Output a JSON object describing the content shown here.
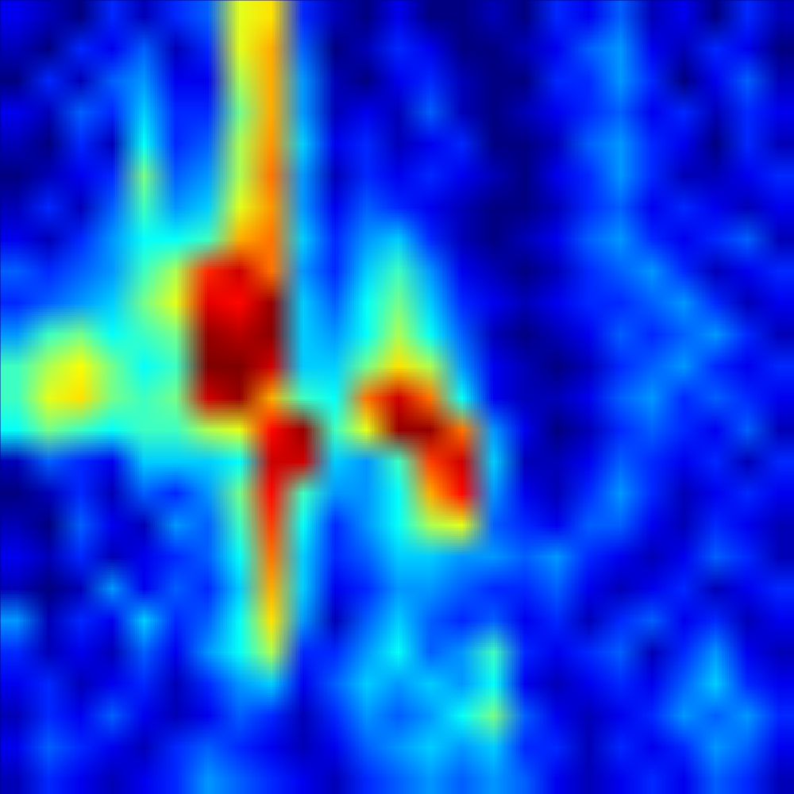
{
  "chart_data": {
    "type": "heatmap",
    "tick_labels": false,
    "cells": [
      [
        0.15,
        0.1,
        0.05,
        0.2,
        0.1,
        0.2,
        0.25,
        0.6,
        0.65,
        0.2,
        0.1,
        0.05,
        0.15,
        0.05,
        0.05,
        0.1,
        0.05,
        0.2,
        0.15,
        0.25,
        0.1,
        0.15,
        0.05,
        0.2,
        0.1
      ],
      [
        0.1,
        0.05,
        0.2,
        0.15,
        0.25,
        0.1,
        0.2,
        0.6,
        0.7,
        0.25,
        0.05,
        0.1,
        0.2,
        0.15,
        0.05,
        0.05,
        0.1,
        0.15,
        0.25,
        0.3,
        0.15,
        0.1,
        0.2,
        0.15,
        0.05
      ],
      [
        0.05,
        0.2,
        0.1,
        0.25,
        0.3,
        0.15,
        0.15,
        0.55,
        0.7,
        0.3,
        0.1,
        0.05,
        0.15,
        0.2,
        0.1,
        0.05,
        0.05,
        0.2,
        0.2,
        0.3,
        0.2,
        0.05,
        0.15,
        0.25,
        0.1
      ],
      [
        0.15,
        0.1,
        0.25,
        0.2,
        0.35,
        0.2,
        0.2,
        0.5,
        0.7,
        0.3,
        0.1,
        0.15,
        0.1,
        0.25,
        0.1,
        0.05,
        0.1,
        0.15,
        0.2,
        0.25,
        0.15,
        0.2,
        0.1,
        0.2,
        0.15
      ],
      [
        0.1,
        0.05,
        0.2,
        0.1,
        0.4,
        0.2,
        0.25,
        0.55,
        0.72,
        0.35,
        0.15,
        0.2,
        0.1,
        0.15,
        0.2,
        0.05,
        0.05,
        0.1,
        0.25,
        0.3,
        0.2,
        0.15,
        0.05,
        0.2,
        0.1
      ],
      [
        0.05,
        0.1,
        0.15,
        0.2,
        0.5,
        0.25,
        0.3,
        0.55,
        0.75,
        0.3,
        0.1,
        0.2,
        0.15,
        0.2,
        0.15,
        0.1,
        0.05,
        0.15,
        0.2,
        0.3,
        0.2,
        0.1,
        0.1,
        0.15,
        0.2
      ],
      [
        0.1,
        0.2,
        0.1,
        0.25,
        0.45,
        0.3,
        0.35,
        0.6,
        0.72,
        0.3,
        0.15,
        0.25,
        0.2,
        0.15,
        0.1,
        0.05,
        0.05,
        0.1,
        0.2,
        0.25,
        0.15,
        0.2,
        0.15,
        0.1,
        0.15
      ],
      [
        0.15,
        0.1,
        0.2,
        0.3,
        0.4,
        0.4,
        0.45,
        0.7,
        0.75,
        0.35,
        0.2,
        0.3,
        0.35,
        0.2,
        0.1,
        0.05,
        0.1,
        0.15,
        0.25,
        0.3,
        0.2,
        0.15,
        0.2,
        0.25,
        0.1
      ],
      [
        0.25,
        0.2,
        0.25,
        0.3,
        0.45,
        0.55,
        0.82,
        0.9,
        0.75,
        0.3,
        0.2,
        0.35,
        0.45,
        0.3,
        0.15,
        0.1,
        0.05,
        0.1,
        0.2,
        0.25,
        0.3,
        0.2,
        0.1,
        0.15,
        0.2
      ],
      [
        0.2,
        0.25,
        0.3,
        0.35,
        0.5,
        0.6,
        0.88,
        0.85,
        0.95,
        0.35,
        0.25,
        0.4,
        0.5,
        0.35,
        0.2,
        0.15,
        0.1,
        0.15,
        0.2,
        0.2,
        0.25,
        0.3,
        0.2,
        0.1,
        0.15
      ],
      [
        0.3,
        0.45,
        0.5,
        0.4,
        0.45,
        0.5,
        0.95,
        0.92,
        0.96,
        0.35,
        0.3,
        0.4,
        0.55,
        0.4,
        0.25,
        0.1,
        0.05,
        0.1,
        0.15,
        0.25,
        0.2,
        0.25,
        0.3,
        0.2,
        0.1
      ],
      [
        0.45,
        0.55,
        0.62,
        0.5,
        0.4,
        0.45,
        0.97,
        0.97,
        0.9,
        0.35,
        0.35,
        0.5,
        0.65,
        0.55,
        0.3,
        0.15,
        0.1,
        0.05,
        0.1,
        0.2,
        0.25,
        0.3,
        0.2,
        0.15,
        0.2
      ],
      [
        0.45,
        0.6,
        0.65,
        0.5,
        0.45,
        0.5,
        0.9,
        0.95,
        0.7,
        0.45,
        0.4,
        0.75,
        0.9,
        0.75,
        0.4,
        0.15,
        0.1,
        0.1,
        0.15,
        0.25,
        0.3,
        0.2,
        0.25,
        0.2,
        0.15
      ],
      [
        0.4,
        0.5,
        0.45,
        0.4,
        0.45,
        0.45,
        0.55,
        0.6,
        0.85,
        0.95,
        0.45,
        0.6,
        0.95,
        0.95,
        0.75,
        0.3,
        0.15,
        0.05,
        0.1,
        0.2,
        0.25,
        0.2,
        0.15,
        0.25,
        0.1
      ],
      [
        0.1,
        0.25,
        0.2,
        0.15,
        0.35,
        0.35,
        0.35,
        0.4,
        0.9,
        0.9,
        0.35,
        0.3,
        0.45,
        0.8,
        0.9,
        0.35,
        0.1,
        0.1,
        0.15,
        0.25,
        0.2,
        0.15,
        0.2,
        0.1,
        0.2
      ],
      [
        0.05,
        0.1,
        0.2,
        0.1,
        0.25,
        0.2,
        0.3,
        0.5,
        0.85,
        0.45,
        0.3,
        0.3,
        0.4,
        0.7,
        0.85,
        0.3,
        0.15,
        0.1,
        0.2,
        0.3,
        0.2,
        0.1,
        0.15,
        0.2,
        0.15
      ],
      [
        0.1,
        0.05,
        0.25,
        0.15,
        0.1,
        0.3,
        0.25,
        0.45,
        0.8,
        0.4,
        0.2,
        0.3,
        0.4,
        0.55,
        0.6,
        0.25,
        0.2,
        0.15,
        0.25,
        0.25,
        0.15,
        0.1,
        0.2,
        0.15,
        0.1
      ],
      [
        0.15,
        0.1,
        0.2,
        0.1,
        0.15,
        0.2,
        0.25,
        0.4,
        0.75,
        0.35,
        0.2,
        0.25,
        0.35,
        0.35,
        0.3,
        0.3,
        0.25,
        0.3,
        0.2,
        0.15,
        0.1,
        0.15,
        0.25,
        0.2,
        0.1
      ],
      [
        0.1,
        0.05,
        0.1,
        0.3,
        0.15,
        0.25,
        0.2,
        0.35,
        0.7,
        0.35,
        0.15,
        0.2,
        0.3,
        0.3,
        0.25,
        0.2,
        0.2,
        0.25,
        0.15,
        0.1,
        0.15,
        0.2,
        0.1,
        0.15,
        0.2
      ],
      [
        0.3,
        0.1,
        0.2,
        0.15,
        0.35,
        0.2,
        0.25,
        0.4,
        0.65,
        0.3,
        0.1,
        0.25,
        0.35,
        0.25,
        0.2,
        0.25,
        0.15,
        0.2,
        0.1,
        0.2,
        0.25,
        0.15,
        0.2,
        0.1,
        0.15
      ],
      [
        0.2,
        0.1,
        0.15,
        0.1,
        0.25,
        0.15,
        0.3,
        0.4,
        0.55,
        0.2,
        0.2,
        0.3,
        0.4,
        0.25,
        0.3,
        0.45,
        0.2,
        0.15,
        0.2,
        0.25,
        0.1,
        0.2,
        0.3,
        0.15,
        0.1
      ],
      [
        0.15,
        0.2,
        0.1,
        0.15,
        0.2,
        0.1,
        0.2,
        0.3,
        0.35,
        0.15,
        0.25,
        0.35,
        0.3,
        0.35,
        0.3,
        0.4,
        0.15,
        0.1,
        0.15,
        0.2,
        0.15,
        0.25,
        0.35,
        0.2,
        0.15
      ],
      [
        0.1,
        0.2,
        0.15,
        0.25,
        0.15,
        0.1,
        0.15,
        0.25,
        0.2,
        0.1,
        0.2,
        0.3,
        0.25,
        0.3,
        0.4,
        0.5,
        0.25,
        0.15,
        0.1,
        0.15,
        0.2,
        0.3,
        0.25,
        0.3,
        0.2
      ],
      [
        0.15,
        0.25,
        0.2,
        0.15,
        0.1,
        0.2,
        0.25,
        0.2,
        0.15,
        0.1,
        0.15,
        0.25,
        0.3,
        0.35,
        0.3,
        0.35,
        0.2,
        0.2,
        0.1,
        0.2,
        0.15,
        0.2,
        0.3,
        0.25,
        0.15
      ],
      [
        0.1,
        0.2,
        0.15,
        0.1,
        0.15,
        0.2,
        0.3,
        0.25,
        0.2,
        0.15,
        0.1,
        0.2,
        0.25,
        0.3,
        0.25,
        0.3,
        0.25,
        0.15,
        0.1,
        0.15,
        0.2,
        0.15,
        0.25,
        0.2,
        0.1
      ]
    ]
  }
}
